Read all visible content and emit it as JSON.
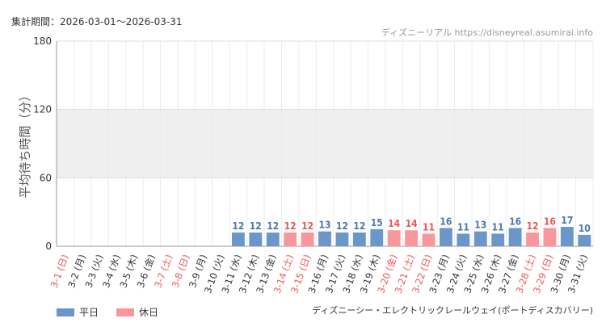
{
  "header": {
    "period": "集計期間：2026-03-01〜2026-03-31"
  },
  "source": {
    "credit": "ディズニーリアル https://disneyreal.asumirai.info"
  },
  "legend": {
    "weekday_label": "平日",
    "holiday_label": "休日"
  },
  "footer": {
    "attraction": "ディズニーシー・エレクトリックレールウェイ(ポートディスカバリー)"
  },
  "colors": {
    "weekday": "#6a96c8",
    "holiday": "#f7969b",
    "band": "#efefef",
    "grid": "#dddddd",
    "weekday_text": "#333333",
    "holiday_text": "#ee5555"
  },
  "chart_data": {
    "type": "bar",
    "ylabel": "平均待ち時間（分）",
    "ylim": [
      0,
      180
    ],
    "yticks": [
      "0",
      "60",
      "120",
      "180"
    ],
    "shaded_band": [
      60,
      120
    ],
    "categories": [
      "3-1 (日)",
      "3-2 (月)",
      "3-3 (火)",
      "3-4 (水)",
      "3-5 (木)",
      "3-6 (金)",
      "3-7 (土)",
      "3-8 (日)",
      "3-9 (月)",
      "3-10 (火)",
      "3-11 (水)",
      "3-12 (木)",
      "3-13 (金)",
      "3-14 (土)",
      "3-15 (日)",
      "3-16 (月)",
      "3-17 (火)",
      "3-18 (水)",
      "3-19 (木)",
      "3-20 (金)",
      "3-21 (土)",
      "3-22 (日)",
      "3-23 (月)",
      "3-24 (火)",
      "3-25 (水)",
      "3-26 (木)",
      "3-27 (金)",
      "3-28 (土)",
      "3-29 (日)",
      "3-30 (月)",
      "3-31 (火)"
    ],
    "holiday": [
      true,
      false,
      false,
      false,
      false,
      false,
      true,
      true,
      false,
      false,
      false,
      false,
      false,
      true,
      true,
      false,
      false,
      false,
      false,
      true,
      true,
      true,
      false,
      false,
      false,
      false,
      false,
      true,
      true,
      false,
      false
    ],
    "values": [
      null,
      null,
      null,
      null,
      null,
      null,
      null,
      null,
      null,
      null,
      12,
      12,
      12,
      12,
      12,
      13,
      12,
      12,
      15,
      14,
      14,
      11,
      16,
      11,
      13,
      11,
      16,
      12,
      16,
      17,
      10
    ]
  }
}
